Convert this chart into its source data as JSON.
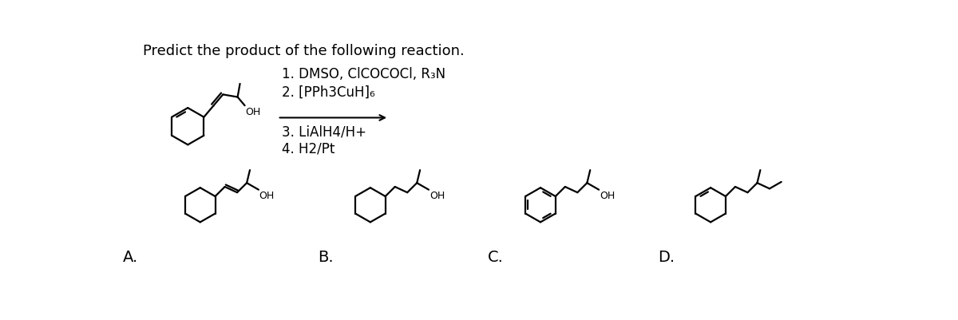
{
  "title": "Predict the product of the following reaction.",
  "reaction_steps": [
    "1. DMSO, ClCOCOCl, R₃N",
    "2. [PPh3CuH]₆",
    "3. LiAlH4/H+",
    "4. H2/Pt"
  ],
  "answer_labels": [
    "A.",
    "B.",
    "C.",
    "D."
  ],
  "bg_color": "#ffffff",
  "line_color": "#000000",
  "font_size_title": 13,
  "font_size_labels": 14,
  "font_size_text": 12,
  "lw": 1.6
}
